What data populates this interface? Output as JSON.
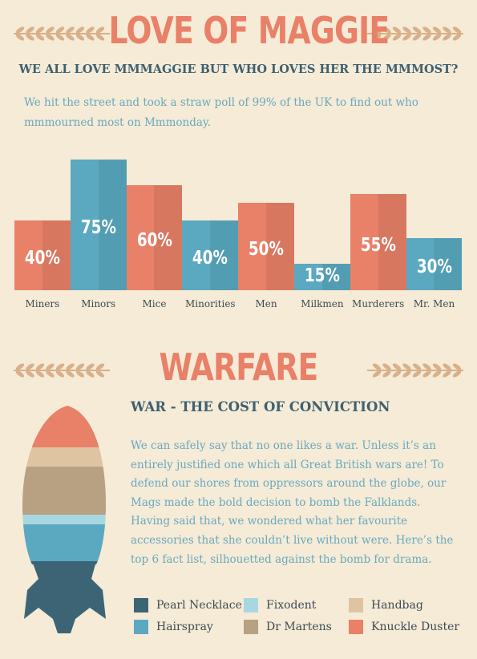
{
  "section1": {
    "title": "LOVE OF MAGGIE",
    "subtitle": "WE ALL LOVE MMMAGGIE BUT WHO LOVES HER THE MMMOST?",
    "intro_line1": "We hit the street and took a straw poll of 99% of the UK to find out who",
    "intro_line2": "mmmourned most on Mmmonday."
  },
  "chart_data": {
    "type": "bar",
    "categories": [
      "Miners",
      "Minors",
      "Mice",
      "Minorities",
      "Men",
      "Milkmen",
      "Murderers",
      "Mr. Men"
    ],
    "values": [
      40,
      75,
      60,
      40,
      50,
      15,
      55,
      30
    ],
    "value_labels": [
      "40%",
      "75%",
      "60%",
      "40%",
      "50%",
      "15%",
      "55%",
      "30%"
    ],
    "colors": [
      "#e98068",
      "#5aa9c1",
      "#e98068",
      "#5aa9c1",
      "#e98068",
      "#5aa9c1",
      "#e98068",
      "#5aa9c1"
    ],
    "ylim": [
      0,
      100
    ],
    "grid": false
  },
  "section2": {
    "title": "WARFARE",
    "subtitle": "WAR - THE COST OF CONVICTION",
    "paragraph_lines": [
      "We can safely say that no one likes a war. Unless it’s an",
      "entirely justified one which all Great British wars are! To",
      "defend our shores from oppressors around the globe, our",
      "Mags made the bold decision to bomb the Falklands.",
      "Having said that, we wondered what her favourite",
      "accessories that she couldn’t live without were. Here’s the",
      "top 6 fact list, silhouetted against the bomb for drama."
    ]
  },
  "legend": [
    {
      "label": "Pearl Necklace",
      "color": "#3d6475"
    },
    {
      "label": "Fixodent",
      "color": "#a7d8e2"
    },
    {
      "label": "Handbag",
      "color": "#dfc4a2"
    },
    {
      "label": "Hairspray",
      "color": "#5aa9c1"
    },
    {
      "label": "Dr Martens",
      "color": "#b8a083"
    },
    {
      "label": "Knuckle Duster",
      "color": "#e98068"
    }
  ],
  "colors": {
    "background": "#f5ebd6",
    "accent_red": "#e98068",
    "accent_blue": "#5aa9c1",
    "dark_teal": "#3d6475",
    "laurel": "#d8b08a"
  }
}
